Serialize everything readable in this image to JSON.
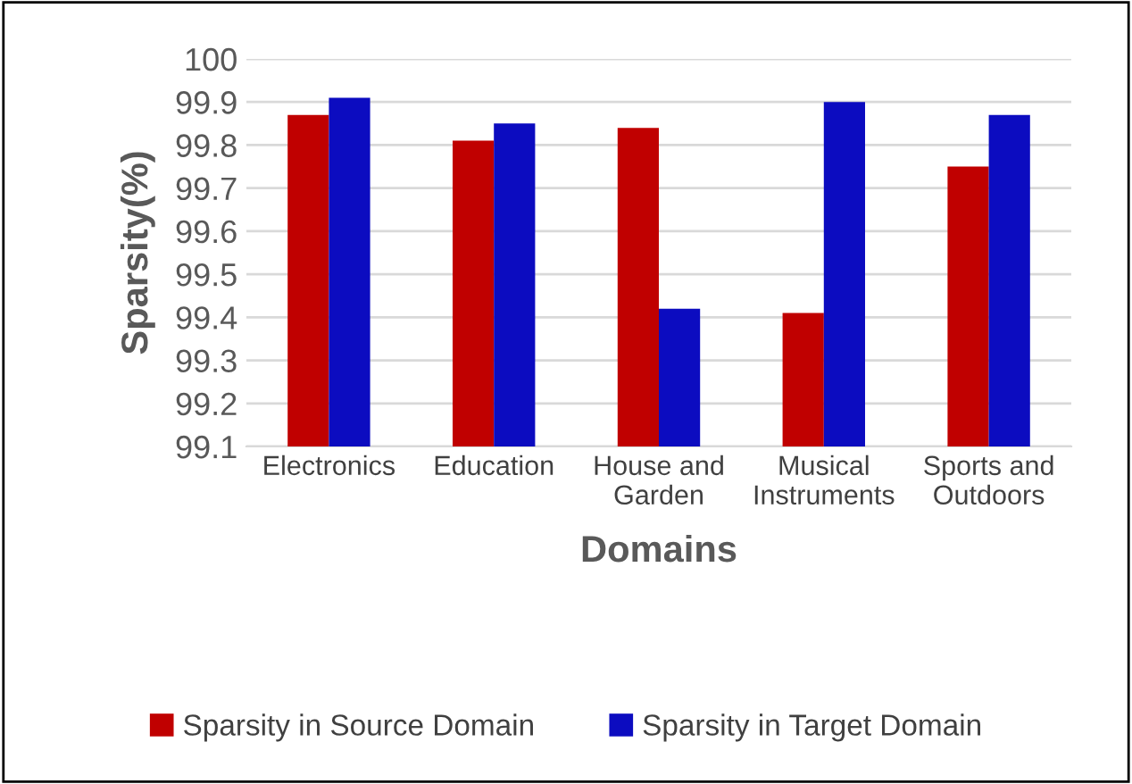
{
  "chart_data": {
    "type": "bar",
    "xlabel": "Domains",
    "ylabel": "Sparsity(%)",
    "categories": [
      "Electronics",
      "Education",
      "House and\nGarden",
      "Musical\nInstruments",
      "Sports and\nOutdoors"
    ],
    "series": [
      {
        "name": "Sparsity in Source Domain",
        "color": "#c00000",
        "values": [
          99.87,
          99.81,
          99.84,
          99.41,
          99.75
        ]
      },
      {
        "name": "Sparsity in Target Domain",
        "color": "#0c0cc0",
        "values": [
          99.91,
          99.85,
          99.42,
          99.9,
          99.87
        ]
      }
    ],
    "ylim": [
      99.1,
      100
    ],
    "yticks": [
      99.1,
      99.2,
      99.3,
      99.4,
      99.5,
      99.6,
      99.7,
      99.8,
      99.9,
      100
    ],
    "grid": "y",
    "legend": "bottom"
  }
}
